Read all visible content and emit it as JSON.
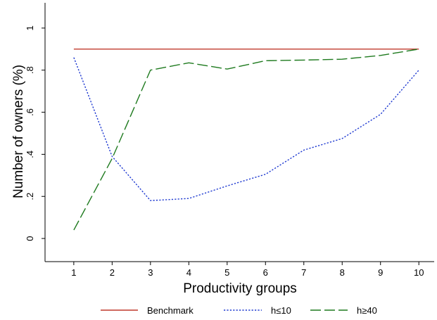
{
  "chart_data": {
    "type": "line",
    "x": [
      1,
      2,
      3,
      4,
      5,
      6,
      7,
      8,
      9,
      10
    ],
    "xlabel": "Productivity groups",
    "ylabel": "Number of owners (%)",
    "xlim": [
      0.25,
      10.4
    ],
    "ylim": [
      -0.11,
      1.12
    ],
    "xticks": [
      1,
      2,
      3,
      4,
      5,
      6,
      7,
      8,
      9,
      10
    ],
    "xtick_labels": [
      "1",
      "2",
      "3",
      "4",
      "5",
      "6",
      "7",
      "8",
      "9",
      "10"
    ],
    "yticks": [
      0,
      0.2,
      0.4,
      0.6,
      0.8,
      1
    ],
    "ytick_labels": [
      "0",
      ".2",
      ".4",
      ".6",
      ".8",
      "1"
    ],
    "grid": false,
    "legend_position": "bottom",
    "series": [
      {
        "name": "Benchmark",
        "values": [
          0.9,
          0.9,
          0.9,
          0.9,
          0.9,
          0.9,
          0.9,
          0.9,
          0.9,
          0.9
        ],
        "color": "#c0392b",
        "style": "solid"
      },
      {
        "name": "h≤10",
        "values": [
          0.86,
          0.39,
          0.18,
          0.19,
          0.25,
          0.305,
          0.42,
          0.475,
          0.59,
          0.8
        ],
        "color": "#1f3ad1",
        "style": "dotted"
      },
      {
        "name": "h≥40",
        "values": [
          0.04,
          0.38,
          0.8,
          0.835,
          0.805,
          0.845,
          0.848,
          0.852,
          0.87,
          0.9
        ],
        "color": "#1e7a1e",
        "style": "dashed"
      }
    ]
  }
}
